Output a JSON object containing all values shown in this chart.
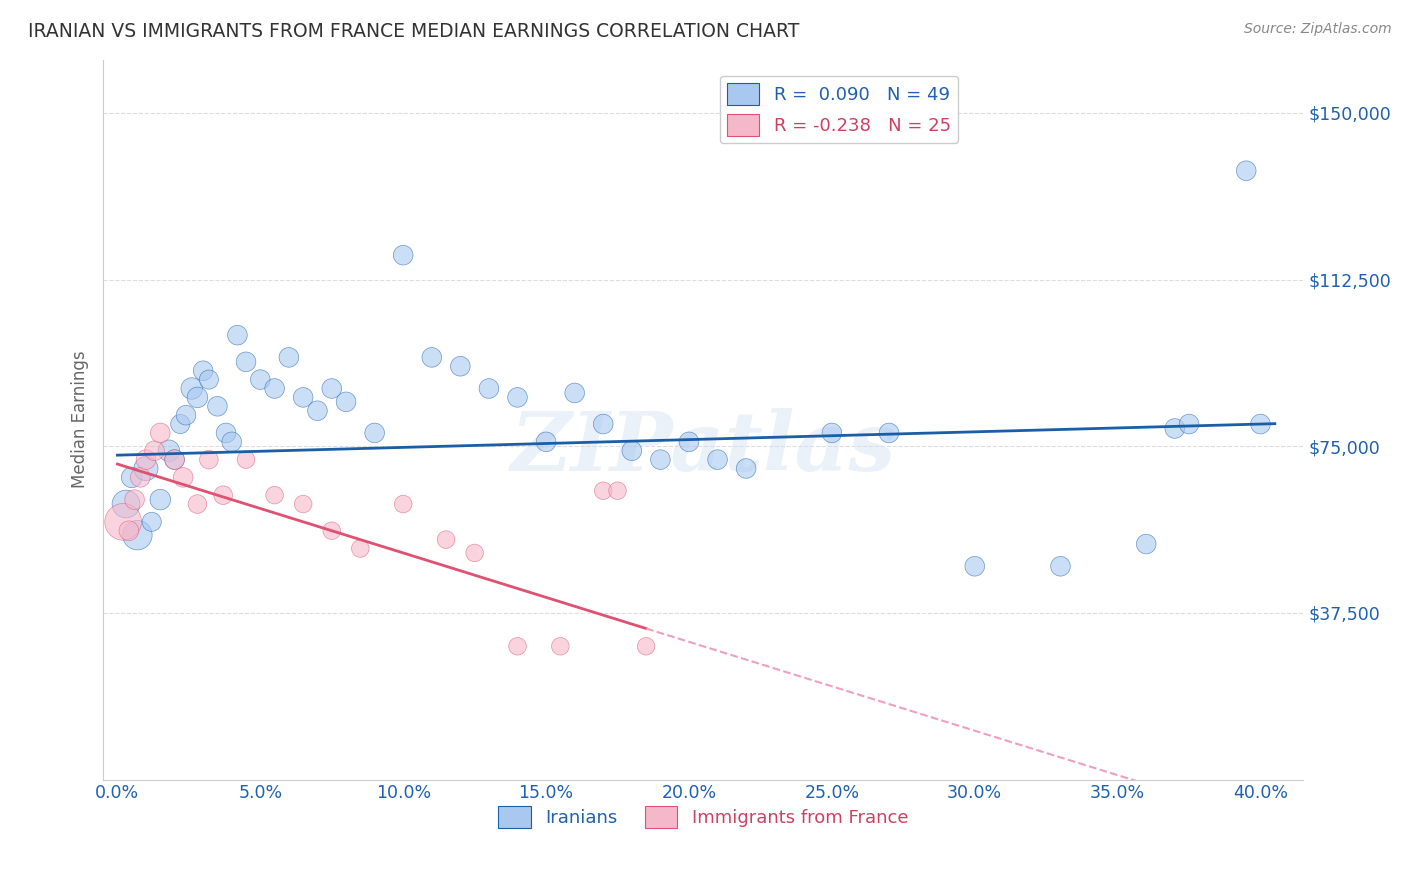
{
  "title": "IRANIAN VS IMMIGRANTS FROM FRANCE MEDIAN EARNINGS CORRELATION CHART",
  "source": "Source: ZipAtlas.com",
  "xlabel_ticks": [
    "0.0%",
    "",
    "5.0%",
    "",
    "10.0%",
    "",
    "15.0%",
    "",
    "20.0%",
    "",
    "25.0%",
    "",
    "30.0%",
    "",
    "35.0%",
    "",
    "40.0%"
  ],
  "xlabel_vals": [
    0,
    2.5,
    5,
    7.5,
    10,
    12.5,
    15,
    17.5,
    20,
    22.5,
    25,
    27.5,
    30,
    32.5,
    35,
    37.5,
    40
  ],
  "ylabel": "Median Earnings",
  "ytick_labels": [
    "$37,500",
    "$75,000",
    "$112,500",
    "$150,000"
  ],
  "ytick_vals": [
    37500,
    75000,
    112500,
    150000
  ],
  "ylim": [
    0,
    162000
  ],
  "xlim": [
    -0.5,
    41.5
  ],
  "watermark_text": "ZIPatlas",
  "legend_label_blue": "R =  0.090   N = 49",
  "legend_label_pink": "R = -0.238   N = 25",
  "blue_scatter_color": "#A8C8F0",
  "pink_scatter_color": "#F5B8CB",
  "blue_line_color": "#1A5EA8",
  "pink_line_color": "#E05070",
  "pink_dashed_color": "#F0A0B8",
  "blue_text_color": "#2060B0",
  "pink_text_color": "#D04060",
  "iranians_x": [
    0.3,
    0.5,
    0.7,
    1.0,
    1.2,
    1.5,
    1.8,
    2.0,
    2.2,
    2.4,
    2.6,
    2.8,
    3.0,
    3.2,
    3.5,
    3.8,
    4.0,
    4.2,
    4.5,
    5.0,
    5.5,
    6.0,
    6.5,
    7.0,
    7.5,
    8.0,
    9.0,
    10.0,
    11.0,
    12.0,
    13.0,
    14.0,
    15.0,
    16.0,
    17.0,
    18.0,
    19.0,
    20.0,
    21.0,
    22.0,
    25.0,
    27.0,
    30.0,
    33.0,
    36.0,
    37.0,
    37.5,
    39.5,
    40.0
  ],
  "iranians_y": [
    62000,
    68000,
    55000,
    70000,
    58000,
    63000,
    74000,
    72000,
    80000,
    82000,
    88000,
    86000,
    92000,
    90000,
    84000,
    78000,
    76000,
    100000,
    94000,
    90000,
    88000,
    95000,
    86000,
    83000,
    88000,
    85000,
    78000,
    118000,
    95000,
    93000,
    88000,
    86000,
    76000,
    87000,
    80000,
    74000,
    72000,
    76000,
    72000,
    70000,
    78000,
    78000,
    48000,
    48000,
    53000,
    79000,
    80000,
    137000,
    80000
  ],
  "iranians_size": [
    400,
    220,
    450,
    300,
    190,
    220,
    240,
    200,
    190,
    200,
    240,
    220,
    200,
    190,
    200,
    200,
    200,
    200,
    200,
    200,
    200,
    200,
    200,
    200,
    200,
    200,
    200,
    200,
    200,
    200,
    200,
    200,
    200,
    200,
    200,
    200,
    200,
    200,
    200,
    200,
    200,
    200,
    200,
    200,
    200,
    200,
    200,
    200,
    200
  ],
  "france_x": [
    0.2,
    0.4,
    0.6,
    0.8,
    1.0,
    1.3,
    1.5,
    2.0,
    2.3,
    2.8,
    3.2,
    3.7,
    4.5,
    5.5,
    6.5,
    7.5,
    8.5,
    10.0,
    11.5,
    12.5,
    14.0,
    15.5,
    17.0,
    17.5,
    18.5
  ],
  "france_y": [
    58000,
    56000,
    63000,
    68000,
    72000,
    74000,
    78000,
    72000,
    68000,
    62000,
    72000,
    64000,
    72000,
    64000,
    62000,
    56000,
    52000,
    62000,
    54000,
    51000,
    30000,
    30000,
    65000,
    65000,
    30000
  ],
  "france_size": [
    700,
    200,
    200,
    200,
    200,
    200,
    200,
    200,
    200,
    180,
    180,
    180,
    160,
    160,
    160,
    160,
    160,
    160,
    160,
    160,
    160,
    160,
    160,
    160,
    160
  ],
  "blue_intercept": 73000,
  "blue_slope": 175,
  "pink_intercept": 71000,
  "pink_slope": -2000,
  "background_color": "#FFFFFF",
  "grid_color": "#DDDDDD",
  "legend_bottom_labels": [
    "Iranians",
    "Immigrants from France"
  ]
}
